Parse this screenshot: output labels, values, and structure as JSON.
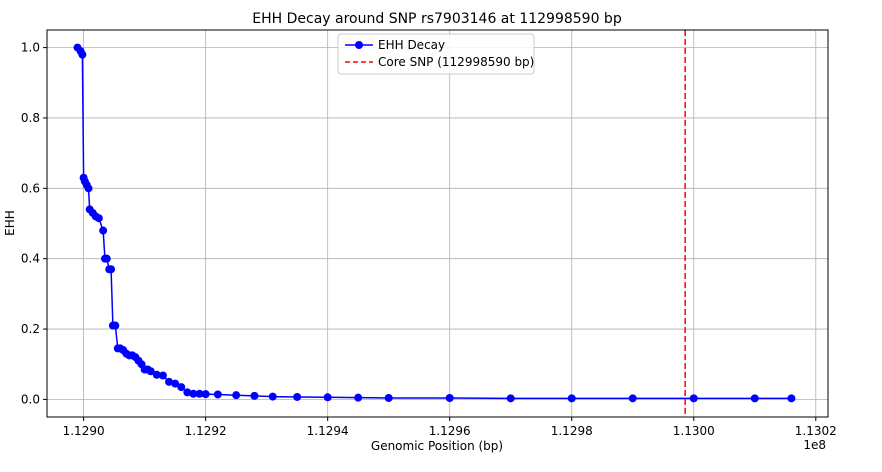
{
  "chart_data": {
    "type": "line",
    "title": "EHH Decay around SNP rs7903146 at 112998590 bp",
    "xlabel": "Genomic Position (bp)",
    "ylabel": "EHH",
    "x_offset_label": "1e8",
    "xlim": [
      1.12894,
      1.13022
    ],
    "ylim": [
      -0.05,
      1.05
    ],
    "x_ticks": [
      1.129,
      1.1292,
      1.1294,
      1.1296,
      1.1298,
      1.13,
      1.1302
    ],
    "x_tick_labels": [
      "1.1290",
      "1.1292",
      "1.1294",
      "1.1296",
      "1.1298",
      "1.1300",
      "1.1302"
    ],
    "y_ticks": [
      0.0,
      0.2,
      0.4,
      0.6,
      0.8,
      1.0
    ],
    "y_tick_labels": [
      "0.0",
      "0.2",
      "0.4",
      "0.6",
      "0.8",
      "1.0"
    ],
    "grid": true,
    "legend_position": "top-center",
    "series": [
      {
        "name": "EHH Decay",
        "color": "#0000ff",
        "marker": "circle",
        "x": [
          1.12899,
          1.128995,
          1.128998,
          1.129,
          1.129002,
          1.129005,
          1.129008,
          1.12901,
          1.129015,
          1.12902,
          1.129025,
          1.129032,
          1.129035,
          1.129038,
          1.129042,
          1.129045,
          1.129048,
          1.129052,
          1.129056,
          1.12906,
          1.129065,
          1.12907,
          1.129075,
          1.12908,
          1.129085,
          1.12909,
          1.129095,
          1.1291,
          1.129105,
          1.12911,
          1.12912,
          1.12913,
          1.12914,
          1.12915,
          1.12916,
          1.12917,
          1.12918,
          1.12919,
          1.1292,
          1.12922,
          1.12925,
          1.12928,
          1.12931,
          1.12935,
          1.1294,
          1.12945,
          1.1295,
          1.1296,
          1.1297,
          1.1298,
          1.1299,
          1.13,
          1.1301,
          1.13016
        ],
        "y": [
          1.0,
          0.99,
          0.98,
          0.63,
          0.62,
          0.61,
          0.6,
          0.54,
          0.53,
          0.52,
          0.515,
          0.48,
          0.4,
          0.4,
          0.37,
          0.37,
          0.21,
          0.21,
          0.145,
          0.145,
          0.14,
          0.13,
          0.125,
          0.125,
          0.12,
          0.11,
          0.1,
          0.085,
          0.085,
          0.08,
          0.07,
          0.068,
          0.05,
          0.045,
          0.035,
          0.02,
          0.016,
          0.016,
          0.015,
          0.014,
          0.012,
          0.01,
          0.008,
          0.007,
          0.006,
          0.005,
          0.004,
          0.004,
          0.003,
          0.003,
          0.003,
          0.003,
          0.003,
          0.003
        ]
      }
    ],
    "reference_line": {
      "name": "Core SNP (112998590 bp)",
      "x": 1.1299859,
      "color": "#ff0000",
      "style": "dashed"
    }
  }
}
